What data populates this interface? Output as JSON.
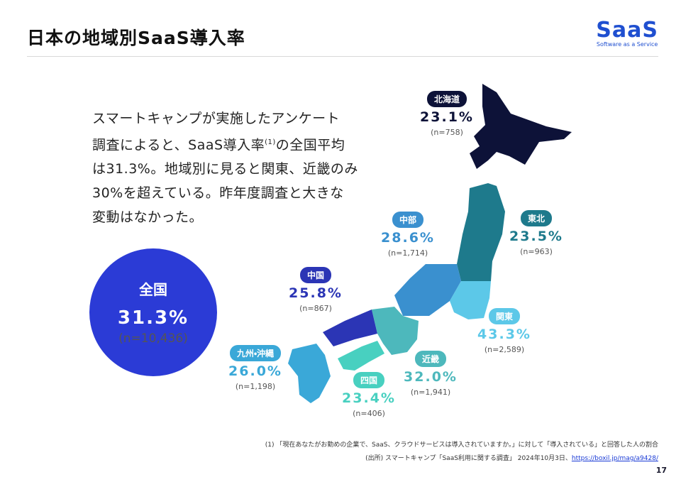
{
  "header": {
    "title": "日本の地域別SaaS導入率",
    "logo": "SaaS",
    "logo_sub": "Software as a Service"
  },
  "body": {
    "lines": [
      [
        "スマートキャンプが実施したアンケート"
      ],
      [
        "調査によると、SaaS導入率",
        "(1)",
        "の全国平均"
      ],
      [
        "は31.3%。地域別に見ると関東、近畿のみ"
      ],
      [
        "30%を超えている。昨年度調査と大きな"
      ],
      [
        "変動はなかった。"
      ]
    ]
  },
  "national": {
    "label": "全国",
    "value": "31.3%",
    "n": "(n=10,436)"
  },
  "regions": [
    {
      "name": "北海道",
      "value": "23.1%",
      "n": "(n=758)",
      "color": "#0d1238"
    },
    {
      "name": "東北",
      "value": "23.5%",
      "n": "(n=963)",
      "color": "#1e7a8c"
    },
    {
      "name": "中部",
      "value": "28.6%",
      "n": "(n=1,714)",
      "color": "#3a90cf"
    },
    {
      "name": "中国",
      "value": "25.8%",
      "n": "(n=867)",
      "color": "#2b35b5"
    },
    {
      "name": "関東",
      "value": "43.3%",
      "n": "(n=2,589)",
      "color": "#5cc8e8"
    },
    {
      "name": "九州・沖縄",
      "value": "26.0%",
      "n": "(n=1,198)",
      "color": "#3aa8d8"
    },
    {
      "name": "四国",
      "value": "23.4%",
      "n": "(n=406)",
      "color": "#48d0c0"
    },
    {
      "name": "近畿",
      "value": "32.0%",
      "n": "(n=1,941)",
      "color": "#4db8bc"
    }
  ],
  "footnotes": {
    "note1": "(1) 「現在あなたがお勤めの企業で、SaaS、クラウドサービスは導入されていますか。」に対して「導入されている」と回答した人の割合",
    "source": "(出所) スマートキャンプ「SaaS利用に関する調査」 2024年10月3日、",
    "link": "https://boxil.jp/mag/a9428/"
  },
  "page_number": "17"
}
